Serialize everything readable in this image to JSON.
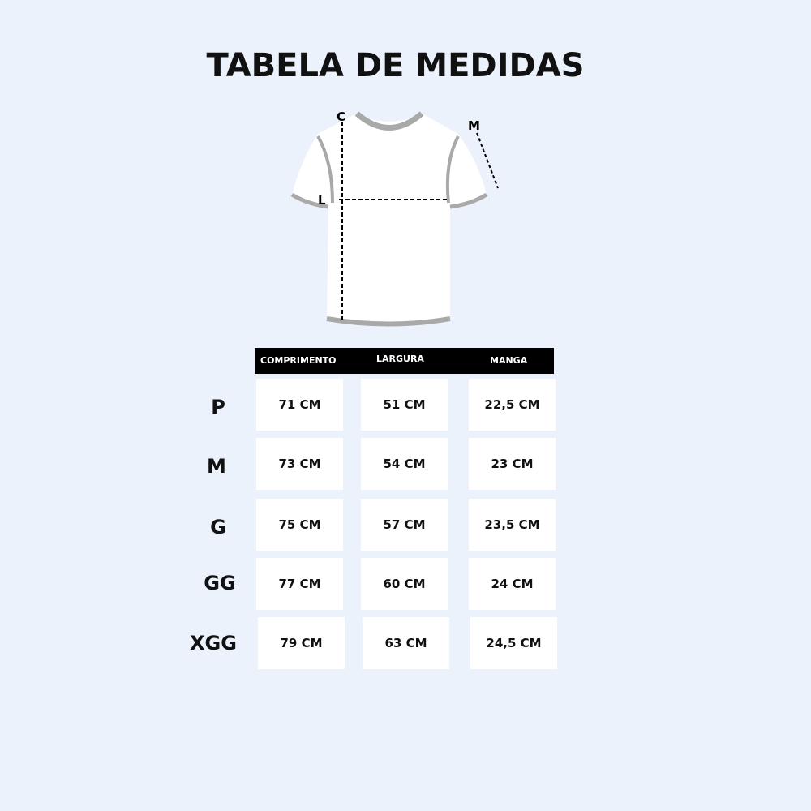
{
  "title": "TABELA DE MEDIDAS",
  "diagram": {
    "length_label": "C",
    "width_label": "L",
    "sleeve_label": "M"
  },
  "table": {
    "headers": [
      "COMPRIMENTO",
      "LARGURA",
      "MANGA"
    ],
    "rows": [
      {
        "size": "P",
        "values": [
          "71 CM",
          "51 CM",
          "22,5 CM"
        ]
      },
      {
        "size": "M",
        "values": [
          "73 CM",
          "54 CM",
          "23 CM"
        ]
      },
      {
        "size": "G",
        "values": [
          "75 CM",
          "57 CM",
          "23,5 CM"
        ]
      },
      {
        "size": "GG",
        "values": [
          "77 CM",
          "60 CM",
          "24 CM"
        ]
      },
      {
        "size": "XGG",
        "values": [
          "79 CM",
          "63 CM",
          "24,5 CM"
        ]
      }
    ]
  },
  "colors": {
    "background": "#ebf2fb",
    "header": "#000000",
    "trim": "#a9a9a9"
  }
}
